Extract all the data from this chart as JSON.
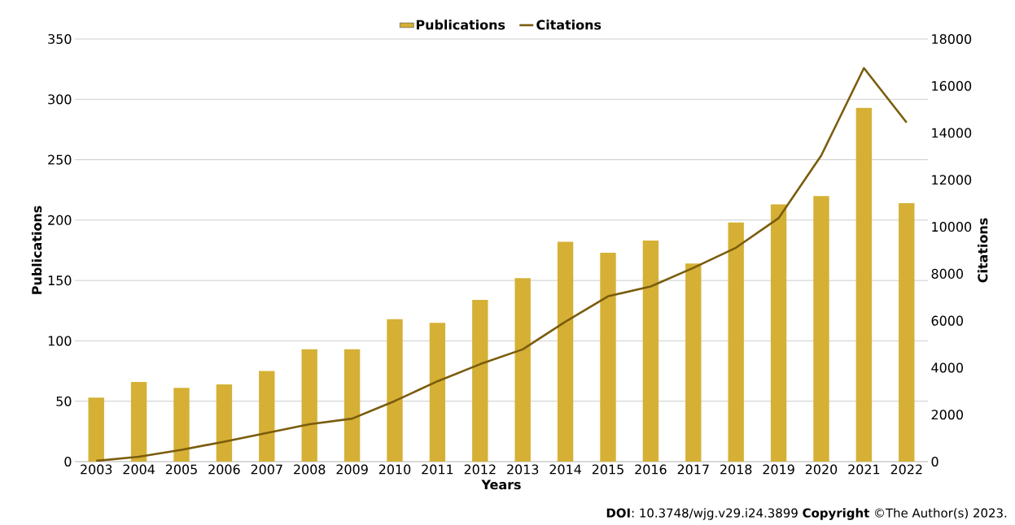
{
  "chart_data": {
    "type": "bar",
    "xlabel": "Years",
    "ylabel": "Publications",
    "y2label": "Citations",
    "categories": [
      "2003",
      "2004",
      "2005",
      "2006",
      "2007",
      "2008",
      "2009",
      "2010",
      "2011",
      "2012",
      "2013",
      "2014",
      "2015",
      "2016",
      "2017",
      "2018",
      "2019",
      "2020",
      "2021",
      "2022"
    ],
    "series": [
      {
        "name": "Publications",
        "color": "#d5b035",
        "values": [
          53,
          66,
          61,
          64,
          75,
          93,
          93,
          118,
          115,
          134,
          152,
          182,
          173,
          183,
          164,
          198,
          213,
          220,
          293,
          214
        ]
      },
      {
        "name": "Citations",
        "type": "line",
        "axis": "y2",
        "color": "#7a5c0c",
        "values": [
          30,
          210,
          500,
          850,
          1220,
          1590,
          1830,
          2580,
          3420,
          4150,
          4780,
          5960,
          7040,
          7460,
          8250,
          9110,
          10370,
          13040,
          16760,
          14440
        ]
      }
    ],
    "ylim": [
      0,
      350
    ],
    "yticks": [
      0,
      50,
      100,
      150,
      200,
      250,
      300,
      350
    ],
    "y2lim": [
      0,
      18000
    ],
    "y2ticks": [
      0,
      2000,
      4000,
      6000,
      8000,
      10000,
      12000,
      14000,
      16000,
      18000
    ],
    "grid": "y",
    "legend": "top",
    "marker": "none",
    "annotations": [
      "**DOI**: 10.3748/wjg.v29.i24.3899 **Copyright** ©The Author(s) 2023."
    ]
  }
}
